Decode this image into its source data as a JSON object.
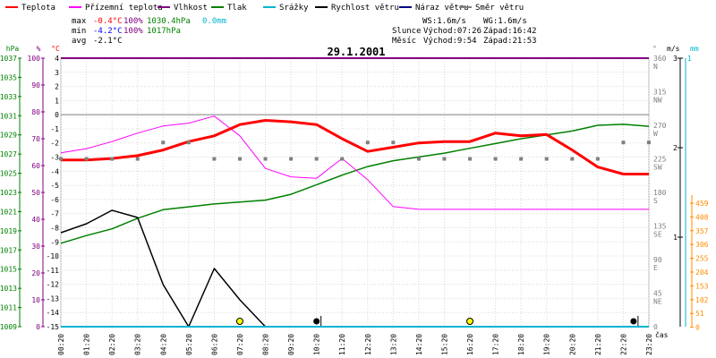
{
  "legend": [
    {
      "label": "Teplota",
      "color": "#ff0000"
    },
    {
      "label": "Přízemní teplota",
      "color": "#ff00ff"
    },
    {
      "label": "Vlhkost",
      "color": "#800080"
    },
    {
      "label": "Tlak",
      "color": "#008000"
    },
    {
      "label": "Srážky",
      "color": "#00b4d0"
    },
    {
      "label": "Rychlost větru",
      "color": "#000000"
    },
    {
      "label": "Náraz větru",
      "color": "#000080"
    },
    {
      "label": "Směr větru",
      "color": "#808080"
    }
  ],
  "stats": {
    "max_label": "max",
    "max_temp": "-0.4°C",
    "max_hum": "100%",
    "max_press": "1030.4hPa",
    "rain": "0.0mm",
    "min_label": "min",
    "min_temp": "-4.2°C",
    "min_hum": "100%",
    "min_press": "1017hPa",
    "avg_label": "avg",
    "avg_temp": "-2.1°C"
  },
  "wind_info": {
    "ws": "WS:1.6m/s",
    "wg": "WG:1.6m/s",
    "sun_label": "Slunce",
    "sun_rise": "Východ:07:26",
    "sun_set": "Západ:16:42",
    "moon_label": "Měsíc",
    "moon_rise": "Východ:9:54",
    "moon_set": "Západ:21:53"
  },
  "colors": {
    "temperature": "#ff0000",
    "ground_temp": "#ff00ff",
    "humidity": "#800080",
    "pressure": "#008000",
    "rain": "#00b4d0",
    "wind_speed": "#000000",
    "wind_dir": "#808080",
    "gust_axis": "#ff8c00"
  },
  "chart_data": {
    "type": "line",
    "title": "29.1.2001",
    "xlabel": "čas",
    "x_tick_labels": [
      "00:20",
      "01:20",
      "02:20",
      "03:20",
      "04:20",
      "05:20",
      "06:20",
      "07:20",
      "08:20",
      "09:20",
      "10:20",
      "11:20",
      "12:20",
      "13:20",
      "14:20",
      "15:20",
      "16:20",
      "17:20",
      "18:20",
      "19:20",
      "20:20",
      "21:20",
      "22:20",
      "23:20"
    ],
    "axes": {
      "hpa": {
        "label": "hPa",
        "range": [
          1009,
          1037
        ],
        "ticks": [
          "1037",
          "1035",
          "1033",
          "1031",
          "1029",
          "1027",
          "1025",
          "1023",
          "1021",
          "1019",
          "1017",
          "1015",
          "1013",
          "1011",
          "1009"
        ]
      },
      "pct": {
        "label": "%",
        "range": [
          0,
          100
        ],
        "ticks": [
          "100",
          "90",
          "80",
          "70",
          "60",
          "50",
          "40",
          "30",
          "20",
          "10",
          "0"
        ]
      },
      "temp": {
        "label": "°C",
        "range": [
          -15,
          4
        ],
        "ticks": [
          "4",
          "3",
          "2",
          "1",
          "0",
          "-1",
          "-2",
          "-3",
          "-4",
          "-5",
          "-6",
          "-7",
          "-8",
          "-9",
          "-10",
          "-11",
          "-12",
          "-13",
          "-14",
          "-15"
        ]
      },
      "dir": {
        "label": "°",
        "range": [
          0,
          360
        ],
        "ticks": [
          {
            "v": "360",
            "d": "N"
          },
          {
            "v": "315",
            "d": "NW"
          },
          {
            "v": "270",
            "d": "W"
          },
          {
            "v": "225",
            "d": "SW"
          },
          {
            "v": "180",
            "d": "S"
          },
          {
            "v": "135",
            "d": "SE"
          },
          {
            "v": "90",
            "d": "E"
          },
          {
            "v": "45",
            "d": "NE"
          },
          {
            "v": "0",
            "d": ""
          }
        ]
      },
      "ms": {
        "label": "m/s",
        "range": [
          0,
          3
        ],
        "ticks": [
          "1",
          "2",
          "3"
        ]
      },
      "mm": {
        "label": "mm",
        "range": [
          0,
          1
        ],
        "ticks": [
          "1"
        ]
      },
      "gust": {
        "ticks": [
          "459",
          "408",
          "357",
          "306",
          "255",
          "204",
          "153",
          "102",
          "51",
          "0"
        ]
      }
    },
    "series": [
      {
        "name": "Teplota",
        "color": "#ff0000",
        "x": [
          0,
          1,
          2,
          3,
          4,
          5,
          6,
          7,
          8,
          9,
          10,
          11,
          12,
          13,
          14,
          15,
          16,
          17,
          18,
          19,
          20,
          21,
          22,
          23
        ],
        "values": [
          -3.2,
          -3.2,
          -3.1,
          -2.9,
          -2.5,
          -1.9,
          -1.5,
          -0.7,
          -0.4,
          -0.5,
          -0.7,
          -1.7,
          -2.6,
          -2.3,
          -2.0,
          -1.9,
          -1.9,
          -1.3,
          -1.5,
          -1.4,
          -2.5,
          -3.7,
          -4.2,
          -4.2
        ]
      },
      {
        "name": "Přízemní teplota",
        "color": "#ff00ff",
        "x": [
          0,
          1,
          2,
          3,
          4,
          5,
          6,
          7,
          8,
          9,
          10,
          11,
          12,
          13,
          14,
          15,
          16,
          17,
          18,
          19,
          20,
          21,
          22,
          23
        ],
        "values": [
          -2.7,
          -2.4,
          -1.9,
          -1.3,
          -0.8,
          -0.6,
          -0.1,
          -1.5,
          -3.8,
          -4.4,
          -4.5,
          -3.1,
          -4.6,
          -6.5,
          -6.7,
          -6.7,
          -6.7,
          -6.7,
          -6.7,
          -6.7,
          -6.7,
          -6.7,
          -6.7,
          -6.7
        ]
      },
      {
        "name": "Vlhkost",
        "color": "#800080",
        "x": [
          0,
          23
        ],
        "values": [
          100,
          100
        ]
      },
      {
        "name": "Tlak",
        "color": "#008000",
        "x": [
          0,
          1,
          2,
          3,
          4,
          5,
          6,
          7,
          8,
          9,
          10,
          11,
          12,
          13,
          14,
          15,
          16,
          17,
          18,
          19,
          20,
          21,
          22,
          23
        ],
        "values": [
          1017.7,
          1018.5,
          1019.2,
          1020.3,
          1021.2,
          1021.5,
          1021.8,
          1022.0,
          1022.2,
          1022.8,
          1023.8,
          1024.8,
          1025.7,
          1026.3,
          1026.7,
          1027.1,
          1027.6,
          1028.1,
          1028.6,
          1029.0,
          1029.4,
          1030.0,
          1030.1,
          1029.9
        ]
      },
      {
        "name": "Srážky",
        "color": "#00b4d0",
        "x": [
          0,
          23
        ],
        "values": [
          0,
          0
        ]
      },
      {
        "name": "Rychlost větru",
        "color": "#000000",
        "x": [
          0,
          1,
          2,
          3,
          4,
          5,
          6,
          7,
          8
        ],
        "values": [
          1.05,
          1.15,
          1.3,
          1.22,
          0.47,
          0,
          0.65,
          0.3,
          0
        ]
      },
      {
        "name": "Směr větru",
        "color": "#808080",
        "type": "scatter",
        "x": [
          0,
          1,
          2,
          3,
          4,
          5,
          6,
          7,
          8,
          9,
          10,
          11,
          12,
          13,
          14,
          15,
          16,
          17,
          18,
          19,
          20,
          21,
          22,
          23
        ],
        "values": [
          225,
          225,
          225,
          225,
          247,
          247,
          225,
          225,
          225,
          225,
          225,
          225,
          247,
          247,
          225,
          225,
          225,
          225,
          225,
          225,
          225,
          225,
          247,
          247
        ]
      }
    ],
    "markers": [
      {
        "kind": "yellow-dot",
        "x": 7
      },
      {
        "kind": "black-dot",
        "x": 10
      },
      {
        "kind": "yellow-dot",
        "x": 16
      },
      {
        "kind": "black-dot",
        "x": 22.4
      }
    ],
    "grid": true
  }
}
